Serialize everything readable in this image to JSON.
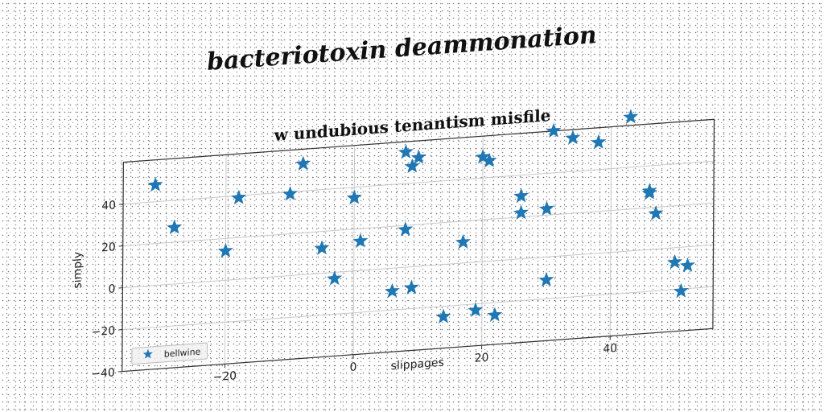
{
  "supertitle": "bacteriotoxin deammonation",
  "chart_data": {
    "type": "scatter",
    "title": "w undubious tenantism misfile",
    "xlabel": "slippages",
    "ylabel": "simply",
    "xlim": [
      -36,
      56
    ],
    "ylim": [
      -40,
      60
    ],
    "x_ticks": [
      -20,
      0,
      20,
      40
    ],
    "y_ticks": [
      -40,
      -20,
      0,
      20,
      40
    ],
    "grid": true,
    "legend_position": "lower-left",
    "marker": "star",
    "color": "#1f77b4",
    "series": [
      {
        "name": "bellwine",
        "points": [
          [
            -31,
            48
          ],
          [
            -28,
            27
          ],
          [
            -20,
            14
          ],
          [
            -18,
            39
          ],
          [
            -10,
            39
          ],
          [
            -8,
            53
          ],
          [
            -5,
            12
          ],
          [
            -3,
            -3
          ],
          [
            0,
            35
          ],
          [
            1,
            14
          ],
          [
            6,
            -11
          ],
          [
            8,
            18
          ],
          [
            8,
            55
          ],
          [
            9,
            -10
          ],
          [
            9,
            48
          ],
          [
            10,
            52
          ],
          [
            14,
            -25
          ],
          [
            17,
            10
          ],
          [
            19,
            -23
          ],
          [
            20,
            50
          ],
          [
            21,
            48
          ],
          [
            22,
            -26
          ],
          [
            26,
            30
          ],
          [
            26,
            22
          ],
          [
            30,
            -11
          ],
          [
            30,
            23
          ],
          [
            31,
            60
          ],
          [
            34,
            56
          ],
          [
            38,
            53
          ],
          [
            43,
            64
          ],
          [
            46,
            28
          ],
          [
            46,
            27
          ],
          [
            47,
            17
          ],
          [
            50,
            -7
          ],
          [
            51,
            -21
          ],
          [
            52,
            -9
          ]
        ]
      }
    ]
  }
}
